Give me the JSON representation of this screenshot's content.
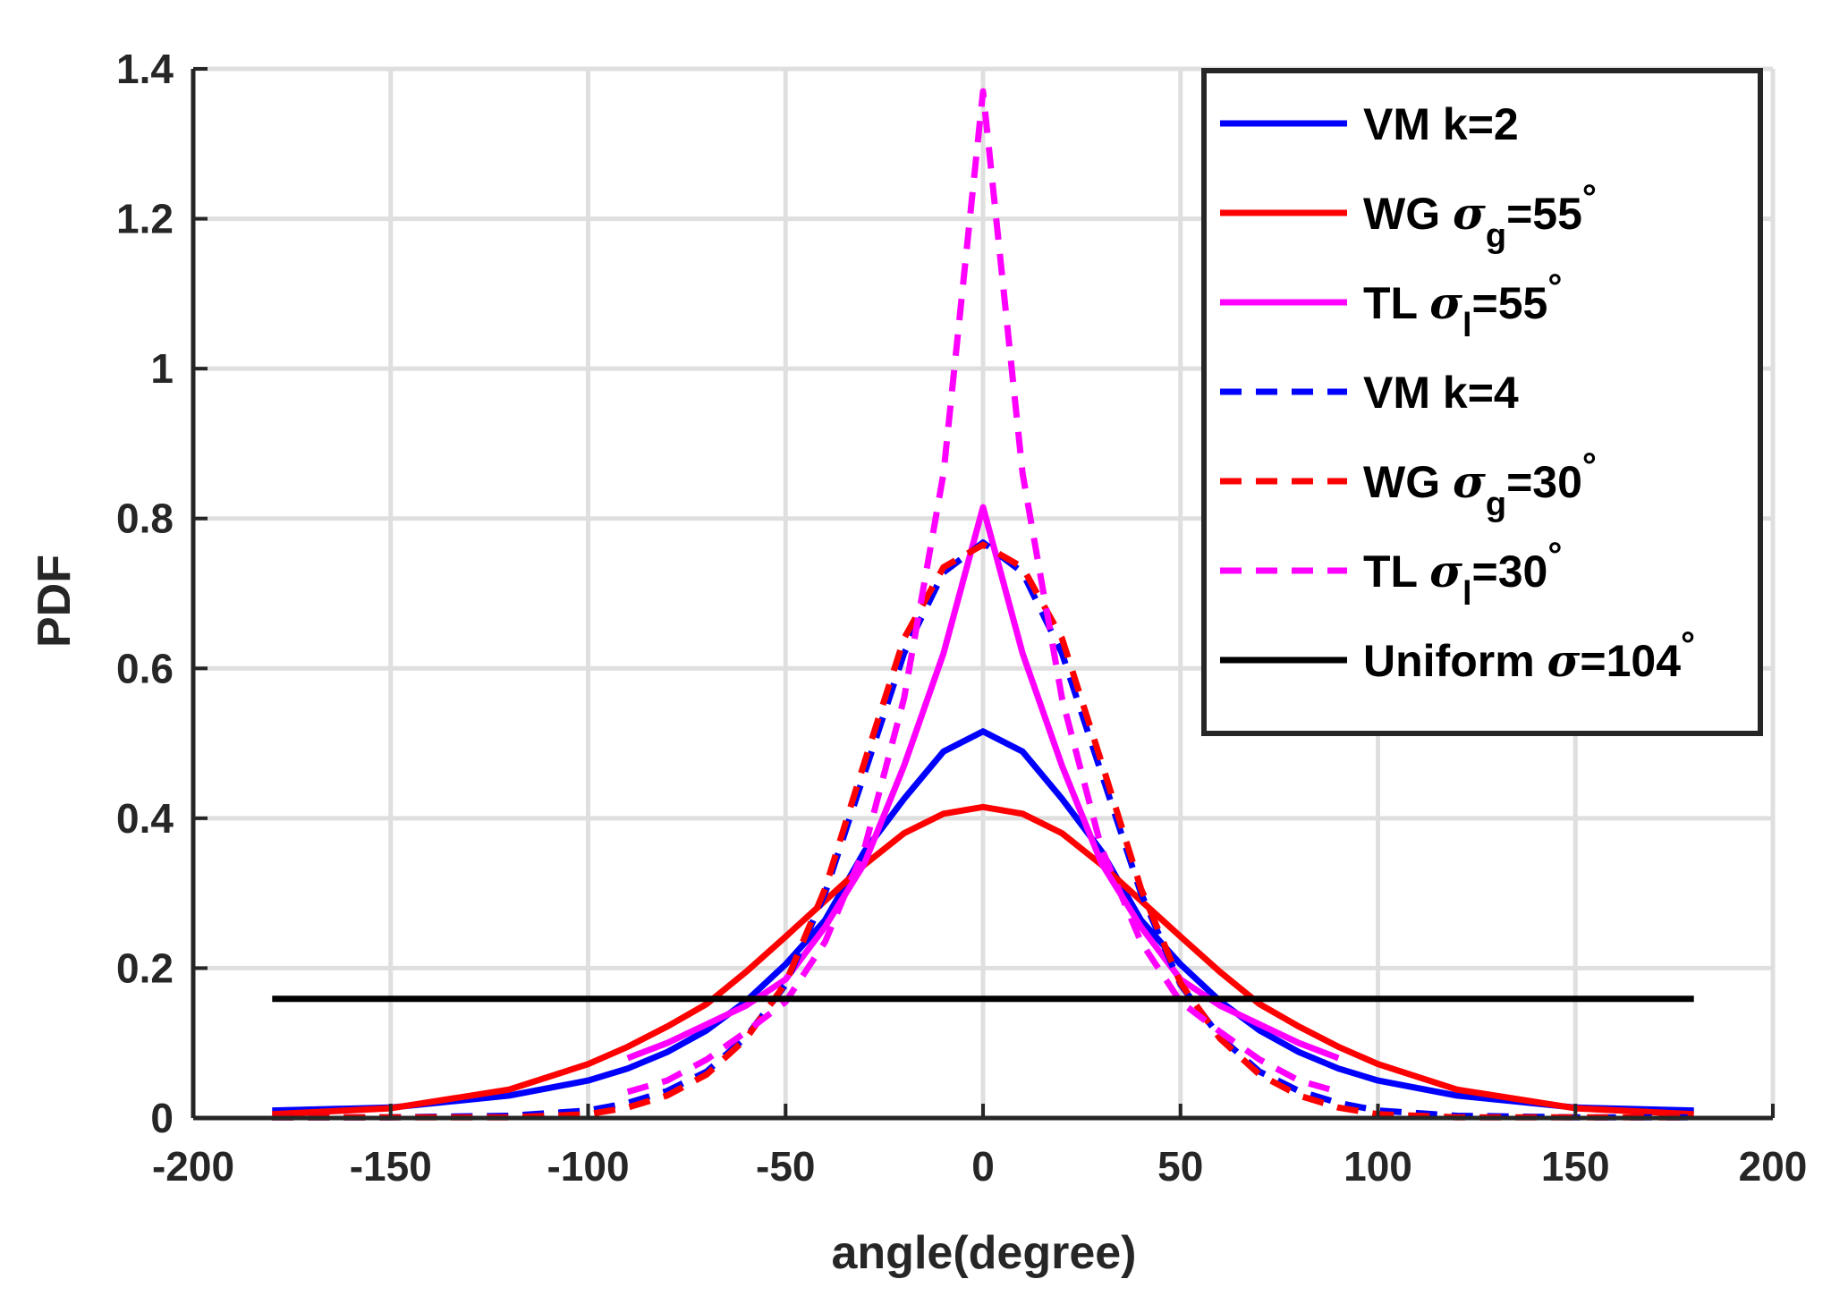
{
  "chart_data": {
    "type": "line",
    "title": "",
    "xlabel": "angle(degree)",
    "ylabel": "PDF",
    "xlim": [
      -200,
      200
    ],
    "ylim": [
      0,
      1.4
    ],
    "grid": true,
    "legend_position": "top-right",
    "x_ticks": [
      -200,
      -150,
      -100,
      -50,
      0,
      50,
      100,
      150,
      200
    ],
    "x_tick_labels": [
      "-200",
      "-150",
      "-100",
      "-50",
      "0",
      "50",
      "100",
      "150",
      "200"
    ],
    "y_ticks": [
      0,
      0.2,
      0.4,
      0.6,
      0.8,
      1,
      1.2,
      1.4
    ],
    "y_tick_labels": [
      "0",
      "0.2",
      "0.4",
      "0.6",
      "0.8",
      "1",
      "1.2",
      "1.4"
    ],
    "x": [
      -180,
      -150,
      -120,
      -100,
      -90,
      -80,
      -70,
      -60,
      -50,
      -40,
      -30,
      -20,
      -10,
      0,
      10,
      20,
      30,
      40,
      50,
      60,
      70,
      80,
      90,
      100,
      120,
      150,
      180
    ],
    "series": [
      {
        "name": "VM k=2",
        "color": "#0000ff",
        "dash": "solid",
        "values": [
          0.01,
          0.014,
          0.03,
          0.05,
          0.066,
          0.088,
          0.117,
          0.156,
          0.205,
          0.264,
          0.356,
          0.426,
          0.489,
          0.516,
          0.489,
          0.426,
          0.356,
          0.264,
          0.205,
          0.156,
          0.117,
          0.088,
          0.066,
          0.05,
          0.03,
          0.014,
          0.01
        ]
      },
      {
        "name": "WG σg=55°",
        "color": "#ff0000",
        "dash": "solid",
        "values": [
          0.005,
          0.013,
          0.038,
          0.072,
          0.095,
          0.122,
          0.152,
          0.195,
          0.242,
          0.29,
          0.338,
          0.38,
          0.406,
          0.415,
          0.406,
          0.38,
          0.338,
          0.29,
          0.242,
          0.195,
          0.152,
          0.122,
          0.095,
          0.072,
          0.038,
          0.013,
          0.005
        ]
      },
      {
        "name": "TL σl=55°",
        "color": "#ff00ff",
        "dash": "solid",
        "values": [
          null,
          null,
          null,
          null,
          0.08,
          0.1,
          0.125,
          0.15,
          0.185,
          0.255,
          0.34,
          0.47,
          0.62,
          0.815,
          0.62,
          0.47,
          0.34,
          0.255,
          0.185,
          0.15,
          0.125,
          0.1,
          0.08,
          null,
          null,
          null,
          null
        ]
      },
      {
        "name": "VM k=4",
        "color": "#0000ff",
        "dash": "dashed",
        "values": [
          0.001,
          0.001,
          0.003,
          0.01,
          0.02,
          0.036,
          0.062,
          0.108,
          0.178,
          0.3,
          0.46,
          0.62,
          0.728,
          0.768,
          0.728,
          0.62,
          0.46,
          0.3,
          0.178,
          0.108,
          0.062,
          0.036,
          0.02,
          0.01,
          0.003,
          0.001,
          0.001
        ]
      },
      {
        "name": "WG σg=30°",
        "color": "#ff0000",
        "dash": "dashed",
        "values": [
          0.001,
          0.001,
          0.001,
          0.005,
          0.014,
          0.03,
          0.058,
          0.106,
          0.18,
          0.306,
          0.475,
          0.64,
          0.735,
          0.765,
          0.735,
          0.64,
          0.475,
          0.306,
          0.18,
          0.106,
          0.058,
          0.03,
          0.014,
          0.005,
          0.001,
          0.001,
          0.001
        ]
      },
      {
        "name": "TL σl=30°",
        "color": "#ff00ff",
        "dash": "dashed",
        "values": [
          null,
          null,
          null,
          null,
          0.035,
          0.05,
          0.078,
          0.115,
          0.155,
          0.235,
          0.36,
          0.56,
          0.86,
          1.37,
          0.86,
          0.56,
          0.36,
          0.235,
          0.155,
          0.115,
          0.078,
          0.05,
          0.035,
          null,
          null,
          null,
          null
        ]
      },
      {
        "name": "Uniform σ=104°",
        "color": "#000000",
        "dash": "solid",
        "values": [
          0.159,
          0.159,
          0.159,
          0.159,
          0.159,
          0.159,
          0.159,
          0.159,
          0.159,
          0.159,
          0.159,
          0.159,
          0.159,
          0.159,
          0.159,
          0.159,
          0.159,
          0.159,
          0.159,
          0.159,
          0.159,
          0.159,
          0.159,
          0.159,
          0.159,
          0.159,
          0.159
        ]
      }
    ],
    "legend": [
      {
        "prefix": "VM k=2",
        "symbol": "",
        "sub": "",
        "suffix": "",
        "degree": ""
      },
      {
        "prefix": "WG ",
        "symbol": "σ",
        "sub": "g",
        "suffix": "=55",
        "degree": "°"
      },
      {
        "prefix": "TL ",
        "symbol": "σ",
        "sub": "l",
        "suffix": "=55",
        "degree": "°"
      },
      {
        "prefix": "VM k=4",
        "symbol": "",
        "sub": "",
        "suffix": "",
        "degree": ""
      },
      {
        "prefix": "WG ",
        "symbol": "σ",
        "sub": "g",
        "suffix": "=30",
        "degree": "°"
      },
      {
        "prefix": "TL ",
        "symbol": "σ",
        "sub": "l",
        "suffix": "=30",
        "degree": "°"
      },
      {
        "prefix": "Uniform ",
        "symbol": "σ",
        "sub": "",
        "suffix": "=104",
        "degree": "°"
      }
    ]
  }
}
